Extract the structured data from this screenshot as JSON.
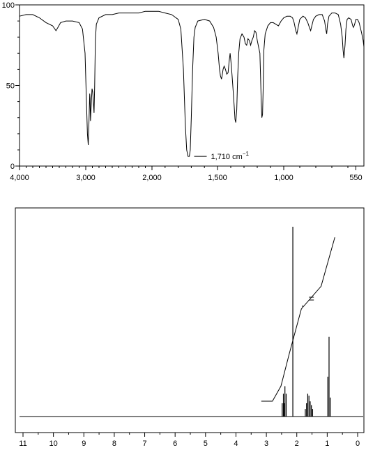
{
  "chart_data": [
    {
      "type": "line",
      "title": "",
      "xlabel": "",
      "ylabel": "",
      "x_tick_labels": [
        "4,000",
        "3,000",
        "2,000",
        "1,500",
        "1,000",
        "550"
      ],
      "y_tick_labels": [
        "0",
        "50",
        "100"
      ],
      "ylim": [
        0,
        100
      ],
      "annotation": "1,710 cm",
      "annotation_superscript": "−1",
      "series": [
        {
          "points": [
            [
              4000,
              93
            ],
            [
              3900,
              94
            ],
            [
              3800,
              94
            ],
            [
              3700,
              92
            ],
            [
              3600,
              89
            ],
            [
              3500,
              87
            ],
            [
              3450,
              84
            ],
            [
              3420,
              86
            ],
            [
              3380,
              89
            ],
            [
              3300,
              90
            ],
            [
              3200,
              90
            ],
            [
              3100,
              89
            ],
            [
              3050,
              85
            ],
            [
              3010,
              70
            ],
            [
              2990,
              40
            ],
            [
              2975,
              20
            ],
            [
              2962,
              13
            ],
            [
              2950,
              30
            ],
            [
              2940,
              45
            ],
            [
              2935,
              42
            ],
            [
              2928,
              28
            ],
            [
              2915,
              40
            ],
            [
              2905,
              48
            ],
            [
              2895,
              46
            ],
            [
              2885,
              40
            ],
            [
              2875,
              33
            ],
            [
              2865,
              50
            ],
            [
              2855,
              78
            ],
            [
              2840,
              88
            ],
            [
              2800,
              92
            ],
            [
              2700,
              94
            ],
            [
              2600,
              94
            ],
            [
              2500,
              95
            ],
            [
              2400,
              95
            ],
            [
              2300,
              95
            ],
            [
              2200,
              95
            ],
            [
              2100,
              96
            ],
            [
              2000,
              96
            ],
            [
              1950,
              96
            ],
            [
              1900,
              95
            ],
            [
              1850,
              94
            ],
            [
              1800,
              91
            ],
            [
              1780,
              85
            ],
            [
              1760,
              60
            ],
            [
              1745,
              25
            ],
            [
              1735,
              10
            ],
            [
              1725,
              6
            ],
            [
              1715,
              6
            ],
            [
              1708,
              10
            ],
            [
              1700,
              30
            ],
            [
              1690,
              60
            ],
            [
              1680,
              80
            ],
            [
              1670,
              86
            ],
            [
              1650,
              90
            ],
            [
              1600,
              91
            ],
            [
              1560,
              90
            ],
            [
              1530,
              86
            ],
            [
              1510,
              80
            ],
            [
              1495,
              70
            ],
            [
              1485,
              60
            ],
            [
              1478,
              56
            ],
            [
              1470,
              54
            ],
            [
              1465,
              56
            ],
            [
              1458,
              60
            ],
            [
              1450,
              62
            ],
            [
              1440,
              60
            ],
            [
              1430,
              57
            ],
            [
              1420,
              58
            ],
            [
              1412,
              65
            ],
            [
              1405,
              70
            ],
            [
              1395,
              62
            ],
            [
              1385,
              50
            ],
            [
              1375,
              38
            ],
            [
              1368,
              29
            ],
            [
              1362,
              27
            ],
            [
              1355,
              35
            ],
            [
              1348,
              55
            ],
            [
              1340,
              70
            ],
            [
              1330,
              79
            ],
            [
              1315,
              82
            ],
            [
              1300,
              80
            ],
            [
              1290,
              76
            ],
            [
              1280,
              75
            ],
            [
              1270,
              79
            ],
            [
              1260,
              78
            ],
            [
              1250,
              75
            ],
            [
              1240,
              78
            ],
            [
              1230,
              80
            ],
            [
              1220,
              84
            ],
            [
              1210,
              83
            ],
            [
              1200,
              78
            ],
            [
              1190,
              74
            ],
            [
              1180,
              70
            ],
            [
              1175,
              55
            ],
            [
              1170,
              40
            ],
            [
              1165,
              30
            ],
            [
              1160,
              32
            ],
            [
              1155,
              50
            ],
            [
              1150,
              72
            ],
            [
              1140,
              82
            ],
            [
              1120,
              87
            ],
            [
              1100,
              89
            ],
            [
              1080,
              89
            ],
            [
              1060,
              88
            ],
            [
              1040,
              87
            ],
            [
              1020,
              90
            ],
            [
              1000,
              92
            ],
            [
              980,
              93
            ],
            [
              960,
              93
            ],
            [
              945,
              92
            ],
            [
              935,
              89
            ],
            [
              925,
              84
            ],
            [
              918,
              82
            ],
            [
              910,
              86
            ],
            [
              900,
              91
            ],
            [
              880,
              93
            ],
            [
              865,
              92
            ],
            [
              850,
              89
            ],
            [
              840,
              86
            ],
            [
              832,
              84
            ],
            [
              825,
              87
            ],
            [
              815,
              91
            ],
            [
              800,
              93
            ],
            [
              780,
              94
            ],
            [
              760,
              94
            ],
            [
              745,
              90
            ],
            [
              738,
              85
            ],
            [
              732,
              82
            ],
            [
              727,
              88
            ],
            [
              718,
              93
            ],
            [
              700,
              95
            ],
            [
              680,
              95
            ],
            [
              660,
              94
            ],
            [
              645,
              88
            ],
            [
              635,
              80
            ],
            [
              630,
              72
            ],
            [
              625,
              67
            ],
            [
              618,
              75
            ],
            [
              612,
              85
            ],
            [
              605,
              91
            ],
            [
              595,
              92
            ],
            [
              580,
              91
            ],
            [
              570,
              87
            ],
            [
              565,
              86
            ],
            [
              558,
              88
            ],
            [
              550,
              91
            ],
            [
              540,
              91
            ],
            [
              530,
              89
            ],
            [
              515,
              83
            ],
            [
              505,
              78
            ],
            [
              500,
              74
            ]
          ]
        }
      ]
    },
    {
      "type": "line",
      "title": "",
      "xlabel": "",
      "ylabel": "",
      "x_tick_labels": [
        "11",
        "10",
        "9",
        "8",
        "7",
        "6",
        "5",
        "4",
        "3",
        "2",
        "1",
        "0"
      ],
      "xlim": [
        11,
        0
      ],
      "peaks": [
        {
          "shift": 2.48,
          "height": 0.07
        },
        {
          "shift": 2.44,
          "height": 0.12
        },
        {
          "shift": 2.41,
          "height": 0.07
        },
        {
          "shift": 2.39,
          "height": 0.16
        },
        {
          "shift": 2.35,
          "height": 0.12
        },
        {
          "shift": 2.13,
          "height": 1.0
        },
        {
          "shift": 1.72,
          "height": 0.04
        },
        {
          "shift": 1.68,
          "height": 0.07
        },
        {
          "shift": 1.64,
          "height": 0.12
        },
        {
          "shift": 1.6,
          "height": 0.11
        },
        {
          "shift": 1.56,
          "height": 0.08
        },
        {
          "shift": 1.52,
          "height": 0.06
        },
        {
          "shift": 1.48,
          "height": 0.04
        },
        {
          "shift": 0.98,
          "height": 0.21
        },
        {
          "shift": 0.94,
          "height": 0.42
        },
        {
          "shift": 0.9,
          "height": 0.1
        }
      ],
      "integral_steps": [
        {
          "from": 2.8,
          "to": 2.52,
          "level": 0.08
        },
        {
          "from": 2.52,
          "to": 2.25,
          "level": 0.25
        },
        {
          "from": 2.25,
          "to": 1.85,
          "level": 0.49
        },
        {
          "from": 1.85,
          "to": 1.2,
          "level": 0.61
        },
        {
          "from": 1.2,
          "to": 0.75,
          "level": 0.87
        }
      ]
    }
  ]
}
